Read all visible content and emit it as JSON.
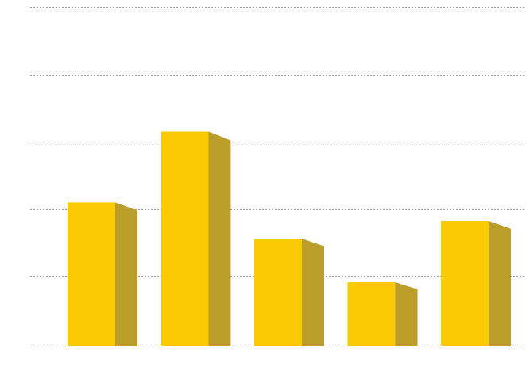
{
  "chart_data": {
    "type": "bar",
    "categories": [
      "",
      "",
      "",
      "",
      ""
    ],
    "values": [
      2.1,
      3.15,
      1.56,
      0.91,
      1.82
    ],
    "ylim": [
      0,
      5
    ],
    "grid": true,
    "gridlines": [
      0,
      1,
      2,
      3,
      4,
      5
    ],
    "colors": {
      "bar_front": "#FACB05",
      "bar_side": "#BB9D2A",
      "grid": "#9a9a9a",
      "background": "#ffffff"
    }
  }
}
